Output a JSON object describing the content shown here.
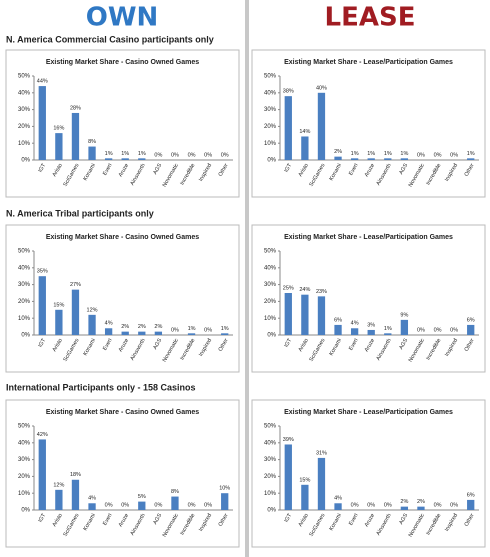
{
  "header": {
    "own": "OWN",
    "lease": "LEASE"
  },
  "sections": [
    "N. America Commercial Casino participants only",
    "N. America Tribal participants only",
    "International Participants only - 158 Casinos"
  ],
  "chart_data": [
    {
      "type": "bar",
      "title": "Existing Market Share - Casino Owned Games",
      "categories": [
        "IGT",
        "Aristo",
        "SciGames",
        "Konami",
        "Everi",
        "Aruze",
        "Ainsworth",
        "AGS",
        "Novomatic",
        "Incredible",
        "Inspired",
        "Other"
      ],
      "values": [
        44,
        16,
        28,
        8,
        1,
        1,
        1,
        0,
        0,
        0,
        0,
        0
      ],
      "value_labels": [
        "44%",
        "16%",
        "28%",
        "8%",
        "1%",
        "1%",
        "1%",
        "0%",
        "0%",
        "0%",
        "0%",
        "0%"
      ],
      "color": "#4a7fc1",
      "ylim": [
        0,
        50
      ],
      "yticks": [
        {
          "value": 0,
          "label": "0%"
        },
        {
          "value": 10,
          "label": "10%"
        },
        {
          "value": 20,
          "label": "20%"
        },
        {
          "value": 30,
          "label": "30%"
        },
        {
          "value": 40,
          "label": "40%"
        },
        {
          "value": 50,
          "label": "50%"
        }
      ]
    },
    {
      "type": "bar",
      "title": "Existing Market Share - Lease/Participation Games",
      "categories": [
        "IGT",
        "Aristo",
        "SciGames",
        "Konami",
        "Everi",
        "Aruze",
        "Ainsworth",
        "AGS",
        "Novomatic",
        "Incredible",
        "Inspired",
        "Other"
      ],
      "values": [
        38,
        14,
        40,
        2,
        1,
        1,
        1,
        1,
        0,
        0,
        0,
        1
      ],
      "value_labels": [
        "38%",
        "14%",
        "40%",
        "2%",
        "1%",
        "1%",
        "1%",
        "1%",
        "0%",
        "0%",
        "0%",
        "1%"
      ],
      "color": "#4a7fc1",
      "ylim": [
        0,
        50
      ],
      "yticks": [
        {
          "value": 0,
          "label": "0%"
        },
        {
          "value": 10,
          "label": "10%"
        },
        {
          "value": 20,
          "label": "20%"
        },
        {
          "value": 30,
          "label": "30%"
        },
        {
          "value": 40,
          "label": "40%"
        },
        {
          "value": 50,
          "label": "50%"
        }
      ]
    },
    {
      "type": "bar",
      "title": "Existing Market Share - Casino Owned Games",
      "categories": [
        "IGT",
        "Aristo",
        "SciGames",
        "Konami",
        "Everi",
        "Aruze",
        "Ainsworth",
        "AGS",
        "Novomatic",
        "Incredible",
        "Inspired",
        "Other"
      ],
      "values": [
        35,
        15,
        27,
        12,
        4,
        2,
        2,
        2,
        0,
        1,
        0,
        1
      ],
      "value_labels": [
        "35%",
        "15%",
        "27%",
        "12%",
        "4%",
        "2%",
        "2%",
        "2%",
        "0%",
        "1%",
        "0%",
        "1%"
      ],
      "color": "#4a7fc1",
      "ylim": [
        0,
        50
      ],
      "yticks": [
        {
          "value": 0,
          "label": "0%"
        },
        {
          "value": 10,
          "label": "10%"
        },
        {
          "value": 20,
          "label": "20%"
        },
        {
          "value": 30,
          "label": "30%"
        },
        {
          "value": 40,
          "label": "40%"
        },
        {
          "value": 50,
          "label": "50%"
        }
      ]
    },
    {
      "type": "bar",
      "title": "Existing Market Share - Lease/Participation Games",
      "categories": [
        "IGT",
        "Aristo",
        "SciGames",
        "Konami",
        "Everi",
        "Aruze",
        "Ainsworth",
        "AGS",
        "Novomatic",
        "Incredible",
        "Inspired",
        "Other"
      ],
      "values": [
        25,
        24,
        23,
        6,
        4,
        3,
        1,
        9,
        0,
        0,
        0,
        6
      ],
      "value_labels": [
        "25%",
        "24%",
        "23%",
        "6%",
        "4%",
        "3%",
        "1%",
        "9%",
        "0%",
        "0%",
        "0%",
        "6%"
      ],
      "color": "#4a7fc1",
      "ylim": [
        0,
        50
      ],
      "yticks": [
        {
          "value": 0,
          "label": "0%"
        },
        {
          "value": 10,
          "label": "10%"
        },
        {
          "value": 20,
          "label": "20%"
        },
        {
          "value": 30,
          "label": "30%"
        },
        {
          "value": 40,
          "label": "40%"
        },
        {
          "value": 50,
          "label": "50%"
        }
      ]
    },
    {
      "type": "bar",
      "title": "Existing Market Share - Casino Owned Games",
      "categories": [
        "IGT",
        "Aristo",
        "SciGames",
        "Konami",
        "Everi",
        "Aruze",
        "Ainsworth",
        "AGS",
        "Novomatic",
        "Incredible",
        "Inspired",
        "Other"
      ],
      "values": [
        42,
        12,
        18,
        4,
        0,
        0,
        5,
        0,
        8,
        0,
        0,
        10
      ],
      "value_labels": [
        "42%",
        "12%",
        "18%",
        "4%",
        "0%",
        "0%",
        "5%",
        "0%",
        "8%",
        "0%",
        "0%",
        "10%"
      ],
      "color": "#4a7fc1",
      "ylim": [
        0,
        50
      ],
      "yticks": [
        {
          "value": 0,
          "label": "0%"
        },
        {
          "value": 10,
          "label": "10%"
        },
        {
          "value": 20,
          "label": "20%"
        },
        {
          "value": 30,
          "label": "30%"
        },
        {
          "value": 40,
          "label": "40%"
        },
        {
          "value": 50,
          "label": "50%"
        }
      ]
    },
    {
      "type": "bar",
      "title": "Existing Market Share - Lease/Participation Games",
      "categories": [
        "IGT",
        "Aristo",
        "SciGames",
        "Konami",
        "Everi",
        "Aruze",
        "Ainsworth",
        "AGS",
        "Novomatic",
        "Incredible",
        "Inspired",
        "Other"
      ],
      "values": [
        39,
        15,
        31,
        4,
        0,
        0,
        0,
        2,
        2,
        0,
        0,
        6
      ],
      "value_labels": [
        "39%",
        "15%",
        "31%",
        "4%",
        "0%",
        "0%",
        "0%",
        "2%",
        "2%",
        "0%",
        "0%",
        "6%"
      ],
      "color": "#4a7fc1",
      "ylim": [
        0,
        50
      ],
      "yticks": [
        {
          "value": 0,
          "label": "0%"
        },
        {
          "value": 10,
          "label": "10%"
        },
        {
          "value": 20,
          "label": "20%"
        },
        {
          "value": 30,
          "label": "30%"
        },
        {
          "value": 40,
          "label": "40%"
        },
        {
          "value": 50,
          "label": "50%"
        }
      ]
    }
  ]
}
